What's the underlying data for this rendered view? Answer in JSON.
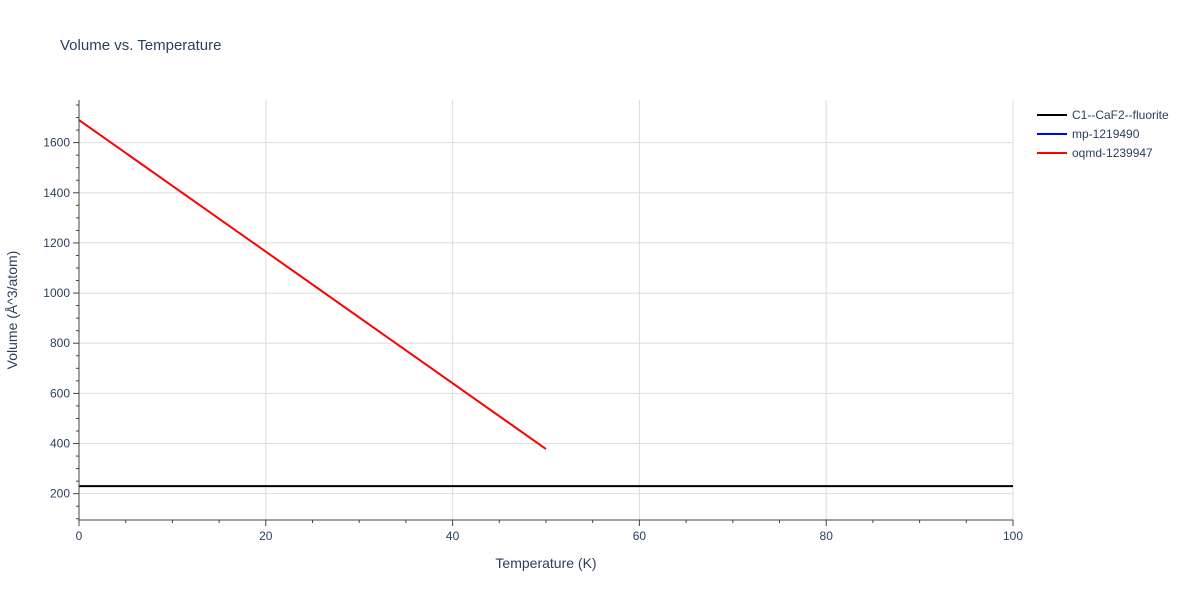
{
  "chart_data": {
    "type": "line",
    "title": "Volume vs. Temperature",
    "xlabel": "Temperature (K)",
    "ylabel": "Volume (Å^3/atom)",
    "xlim": [
      0,
      100
    ],
    "ylim": [
      95,
      1770
    ],
    "x_ticks": [
      0,
      20,
      40,
      60,
      80,
      100
    ],
    "y_ticks": [
      200,
      400,
      600,
      800,
      1000,
      1200,
      1400,
      1600
    ],
    "grid": true,
    "legend_position": "top-right",
    "series": [
      {
        "name": "C1--CaF2--fluorite",
        "color": "#000000",
        "x": [
          0,
          100
        ],
        "y": [
          230,
          230
        ]
      },
      {
        "name": "mp-1219490",
        "color": "#0000ff",
        "x": [],
        "y": []
      },
      {
        "name": "oqmd-1239947",
        "color": "#ff0000",
        "x": [
          0,
          50
        ],
        "y": [
          1690,
          378
        ]
      }
    ]
  }
}
